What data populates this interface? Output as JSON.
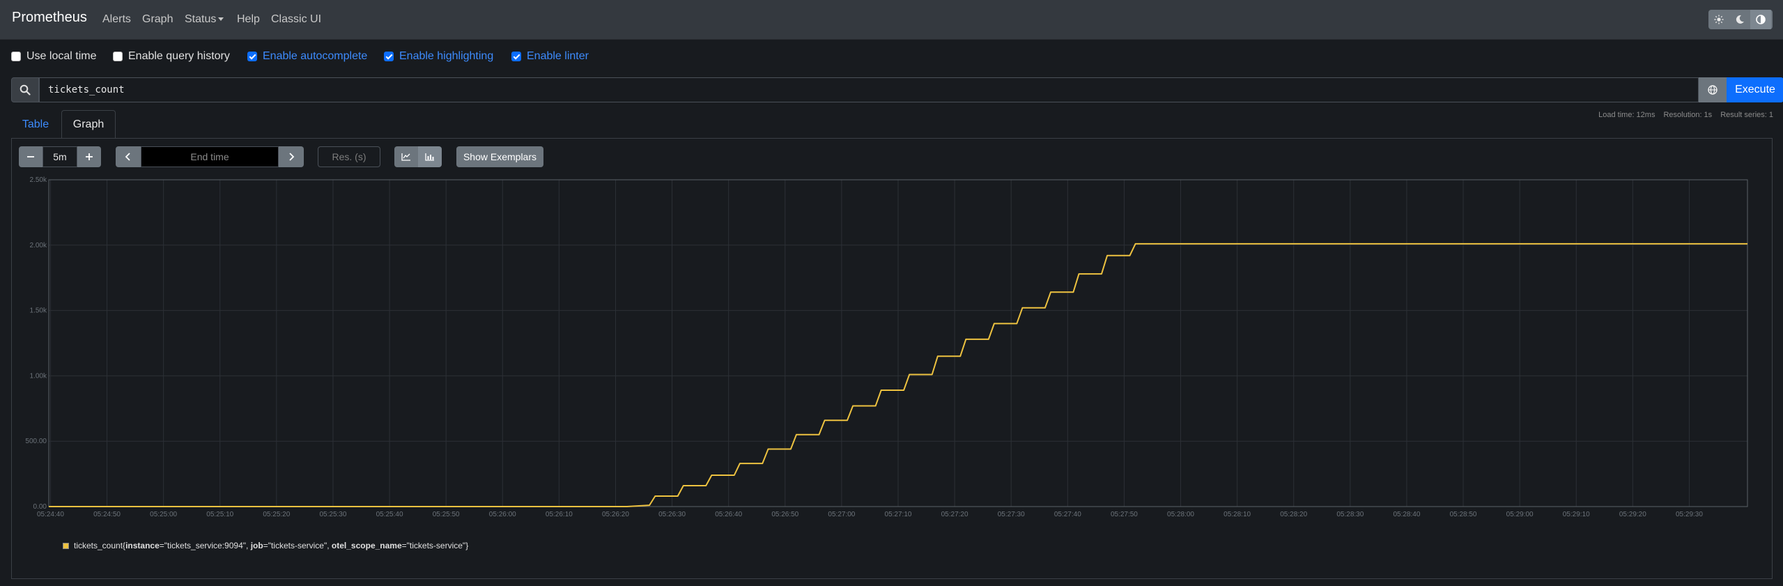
{
  "app": {
    "brand": "Prometheus",
    "nav": [
      "Alerts",
      "Graph",
      "Status",
      "Help",
      "Classic UI"
    ]
  },
  "theme_buttons": [
    "sun-icon",
    "moon-icon",
    "contrast-icon"
  ],
  "options": [
    {
      "label": "Use local time",
      "checked": false
    },
    {
      "label": "Enable query history",
      "checked": false
    },
    {
      "label": "Enable autocomplete",
      "checked": true
    },
    {
      "label": "Enable highlighting",
      "checked": true
    },
    {
      "label": "Enable linter",
      "checked": true
    }
  ],
  "query": {
    "expr": "tickets_count",
    "execute_label": "Execute"
  },
  "tabs": {
    "table": "Table",
    "graph": "Graph"
  },
  "stats": {
    "load_time": "Load time: 12ms",
    "resolution": "Resolution: 1s",
    "result_series": "Result series: 1"
  },
  "graph_controls": {
    "range": "5m",
    "end_time_placeholder": "End time",
    "res_placeholder": "Res. (s)",
    "exemplars_label": "Show Exemplars"
  },
  "legend": {
    "metric": "tickets_count",
    "labels": [
      {
        "key": "instance",
        "value": "\"tickets_service:9094\""
      },
      {
        "key": "job",
        "value": "\"tickets-service\""
      },
      {
        "key": "otel_scope_name",
        "value": "\"tickets-service\""
      }
    ],
    "color": "#edc240"
  },
  "chart_data": {
    "type": "line",
    "y_ticks": [
      "0.00",
      "500.00",
      "1.00k",
      "1.50k",
      "2.00k",
      "2.50k"
    ],
    "ylim": [
      0,
      2500
    ],
    "x_ticks": [
      "05:24:40",
      "05:24:50",
      "05:25:00",
      "05:25:10",
      "05:25:20",
      "05:25:30",
      "05:25:40",
      "05:25:50",
      "05:26:00",
      "05:26:10",
      "05:26:20",
      "05:26:30",
      "05:26:40",
      "05:26:50",
      "05:27:00",
      "05:27:10",
      "05:27:20",
      "05:27:30",
      "05:27:40",
      "05:27:50",
      "05:28:00",
      "05:28:10",
      "05:28:20",
      "05:28:30",
      "05:28:40",
      "05:28:50",
      "05:29:00",
      "05:29:10",
      "05:29:20",
      "05:29:30"
    ],
    "x_range_seconds_from_first_tick": [
      -0.3,
      300.3
    ],
    "grid": true,
    "series": [
      {
        "name": "tickets_count",
        "points_seconds_value": [
          [
            -0.3,
            0
          ],
          [
            102,
            0
          ],
          [
            106,
            10
          ],
          [
            107,
            80
          ],
          [
            111,
            80
          ],
          [
            112,
            160
          ],
          [
            116,
            160
          ],
          [
            117,
            240
          ],
          [
            121,
            240
          ],
          [
            122,
            330
          ],
          [
            126,
            330
          ],
          [
            127,
            440
          ],
          [
            131,
            440
          ],
          [
            132,
            550
          ],
          [
            136,
            550
          ],
          [
            137,
            660
          ],
          [
            141,
            660
          ],
          [
            142,
            770
          ],
          [
            146,
            770
          ],
          [
            147,
            890
          ],
          [
            151,
            890
          ],
          [
            152,
            1010
          ],
          [
            156,
            1010
          ],
          [
            157,
            1150
          ],
          [
            161,
            1150
          ],
          [
            162,
            1280
          ],
          [
            166,
            1280
          ],
          [
            167,
            1400
          ],
          [
            171,
            1400
          ],
          [
            172,
            1520
          ],
          [
            176,
            1520
          ],
          [
            177,
            1640
          ],
          [
            181,
            1640
          ],
          [
            182,
            1780
          ],
          [
            186,
            1780
          ],
          [
            187,
            1920
          ],
          [
            191,
            1920
          ],
          [
            192,
            2010
          ],
          [
            300.3,
            2010
          ]
        ]
      }
    ]
  }
}
